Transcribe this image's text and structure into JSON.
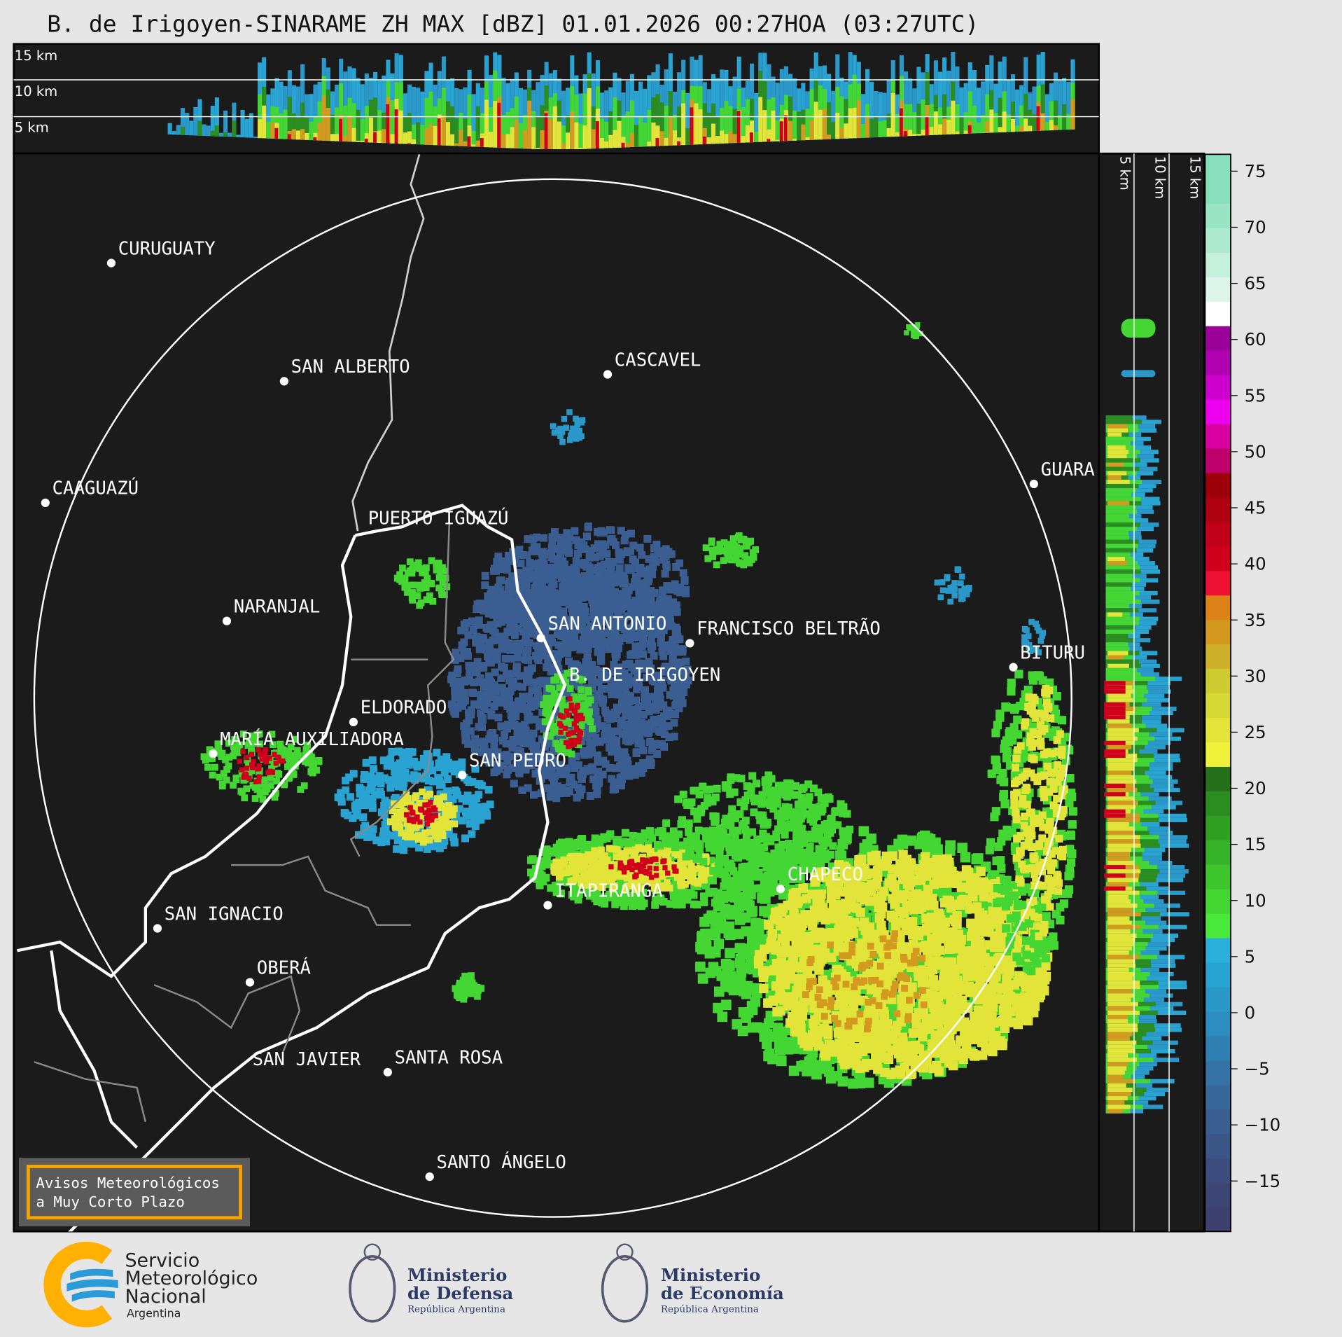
{
  "title": "B. de Irigoyen-SINARAME ZH MAX [dBZ] 01.01.2026 00:27HOA (03:27UTC)",
  "top_section": {
    "height_labels": [
      "15 km",
      "10 km",
      "5 km"
    ]
  },
  "right_section": {
    "height_labels": [
      "5 km",
      "10 km",
      "15 km"
    ]
  },
  "colorbar": {
    "unit": "dBZ",
    "range": [
      -19.5,
      76.5
    ],
    "ticks": [
      "75",
      "70",
      "65",
      "60",
      "55",
      "50",
      "45",
      "40",
      "35",
      "30",
      "25",
      "20",
      "15",
      "10",
      "5",
      "0",
      "−5",
      "−10",
      "−15"
    ],
    "tick_values": [
      75,
      70,
      65,
      60,
      55,
      50,
      45,
      40,
      35,
      30,
      25,
      20,
      15,
      10,
      5,
      0,
      -5,
      -10,
      -15
    ],
    "colors": [
      "#3d3f6e",
      "#3d4574",
      "#3c4d7e",
      "#3b5587",
      "#3a5e91",
      "#38689b",
      "#3572a5",
      "#3180b4",
      "#2d8dc0",
      "#2a98c9",
      "#29a3d2",
      "#2bb0dc",
      "#4ae83a",
      "#44d733",
      "#3ec52d",
      "#37b328",
      "#30a022",
      "#2b8d1f",
      "#266f1b",
      "#eef03a",
      "#e2e43a",
      "#d6d934",
      "#cccb2f",
      "#cfb02a",
      "#d49a1f",
      "#de8218",
      "#ee1133",
      "#d0001d",
      "#c00018",
      "#ae0010",
      "#9d0008",
      "#c0006a",
      "#d800a0",
      "#ee00ee",
      "#cc00cc",
      "#b000b0",
      "#9a0099",
      "#ffffff",
      "#ddf5ea",
      "#c4f0dc",
      "#aeeacf",
      "#98e4c4",
      "#88dfbe",
      "#88dfbe"
    ]
  },
  "map": {
    "cities": [
      {
        "name": "CURUGUATY"
      },
      {
        "name": "SAN ALBERTO"
      },
      {
        "name": "CASCAVEL"
      },
      {
        "name": "CAAGUAZÚ"
      },
      {
        "name": "GUARA"
      },
      {
        "name": "PUERTO IGUAZÚ"
      },
      {
        "name": "NARANJAL"
      },
      {
        "name": "SAN ANTONIO"
      },
      {
        "name": "FRANCISCO BELTRÃO"
      },
      {
        "name": "BITURU"
      },
      {
        "name": "B. DE IRIGOYEN"
      },
      {
        "name": "ELDORADO"
      },
      {
        "name": "MARÍA AUXILIADORA"
      },
      {
        "name": "SAN PEDRO"
      },
      {
        "name": "ITAPIRANGA"
      },
      {
        "name": "CHAPECO"
      },
      {
        "name": "SAN IGNACIO"
      },
      {
        "name": "OBERÁ"
      },
      {
        "name": "SAN JAVIER"
      },
      {
        "name": "SANTA ROSA"
      },
      {
        "name": "SANTO ÁNGELO"
      }
    ],
    "warning_box": {
      "line1": "Avisos Meteorológicos",
      "line2": "a Muy Corto Plazo",
      "border_color": "#f5a300"
    }
  },
  "footer": {
    "smn": {
      "line1": "Servicio",
      "line2": "Meteorológico",
      "line3": "Nacional",
      "line4": "Argentina"
    },
    "defensa": {
      "line1": "Ministerio",
      "line2": "de Defensa",
      "line3": "República Argentina"
    },
    "economia": {
      "line1": "Ministerio",
      "line2": "de Economía",
      "line3": "República Argentina"
    }
  },
  "colors": {
    "background": "#1b1b1b",
    "page": "#e6e6e6",
    "smn_orange": "#ffb000",
    "smn_blue": "#2a9ad8",
    "ministry_navy": "#2b3a67"
  }
}
